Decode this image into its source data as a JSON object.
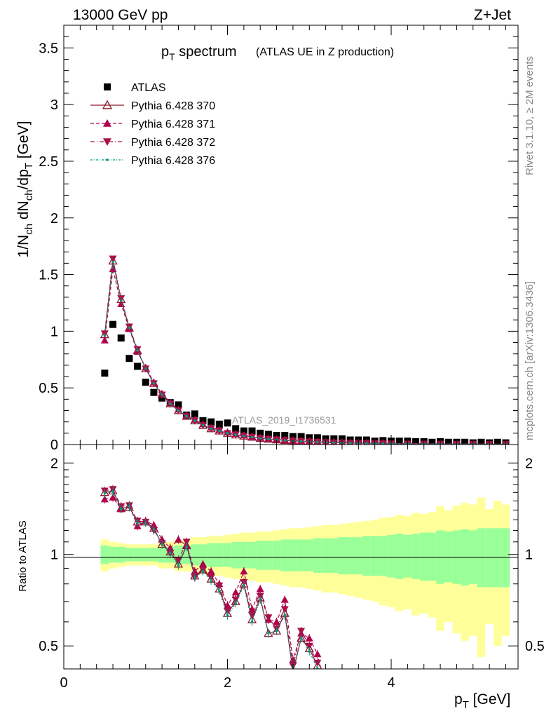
{
  "header": {
    "left": "13000 GeV pp",
    "right": "Z+Jet"
  },
  "side_labels": {
    "top": "Rivet 3.1.10, ≥ 2M events",
    "bottom": "mcplots.cern.ch [arXiv:1306.3436]"
  },
  "title": {
    "main": "p",
    "main_sub": "T",
    "main_rest": " spectrum",
    "suffix": "(ATLAS UE in Z production)"
  },
  "watermark": "ATLAS_2019_I1736531",
  "ylabel_main": "1/N_ch dN_ch/dp_T [GeV]",
  "ylabel_ratio": "Ratio to ATLAS",
  "xlabel": "p_T [GeV]",
  "main_yticks": [
    "0",
    "0.5",
    "1",
    "1.5",
    "2",
    "2.5",
    "3",
    "3.5"
  ],
  "ratio_yticks": [
    "0.5",
    "1",
    "2"
  ],
  "xticks": [
    "0",
    "2",
    "4"
  ],
  "colors": {
    "data": "#000000",
    "p370": "#8b1a2a",
    "p371": "#b0004c",
    "p372": "#a81048",
    "p376": "#009980",
    "band_inner": "#99ff99",
    "band_outer": "#ffff99"
  },
  "chart_data": {
    "type": "scatter",
    "xlim": [
      0,
      5.55
    ],
    "ylim": [
      0,
      3.7
    ],
    "ratio_ylim": [
      0.42,
      2.3
    ],
    "legend_position": "top-left",
    "series": [
      {
        "name": "ATLAS",
        "key": "data",
        "marker": "square",
        "x": [
          0.5,
          0.6,
          0.7,
          0.8,
          0.9,
          1.0,
          1.1,
          1.2,
          1.3,
          1.4,
          1.5,
          1.6,
          1.7,
          1.8,
          1.9,
          2.0,
          2.1,
          2.2,
          2.3,
          2.4,
          2.5,
          2.6,
          2.7,
          2.8,
          2.9,
          3.0,
          3.1,
          3.2,
          3.3,
          3.4,
          3.5,
          3.6,
          3.7,
          3.8,
          3.9,
          4.0,
          4.1,
          4.2,
          4.3,
          4.4,
          4.5,
          4.6,
          4.7,
          4.8,
          4.9,
          5.0,
          5.1,
          5.2,
          5.3,
          5.4
        ],
        "y": [
          0.63,
          1.06,
          0.94,
          0.76,
          0.69,
          0.55,
          0.46,
          0.41,
          0.37,
          0.35,
          0.26,
          0.27,
          0.21,
          0.2,
          0.18,
          0.19,
          0.14,
          0.12,
          0.12,
          0.1,
          0.09,
          0.08,
          0.08,
          0.07,
          0.07,
          0.06,
          0.06,
          0.05,
          0.05,
          0.05,
          0.04,
          0.04,
          0.04,
          0.03,
          0.035,
          0.03,
          0.03,
          0.03,
          0.025,
          0.025,
          0.02,
          0.025,
          0.02,
          0.02,
          0.02,
          0.015,
          0.02,
          0.015,
          0.02,
          0.015
        ]
      },
      {
        "name": "Pythia 6.428 370",
        "key": "p370",
        "marker": "open-triangle-up",
        "line": "solid",
        "x": [
          0.5,
          0.6,
          0.7,
          0.8,
          0.9,
          1.0,
          1.1,
          1.2,
          1.3,
          1.4,
          1.5,
          1.6,
          1.7,
          1.8,
          1.9,
          2.0,
          2.1,
          2.2,
          2.3,
          2.4,
          2.5,
          2.6,
          2.7,
          2.8,
          2.9,
          3.0,
          3.1,
          3.2,
          3.3,
          3.4,
          3.5,
          3.6,
          3.7,
          3.8,
          3.9,
          4.0,
          4.2,
          4.4,
          4.6,
          4.8,
          5.0,
          5.2,
          5.4
        ],
        "y": [
          0.97,
          1.62,
          1.28,
          1.03,
          0.83,
          0.67,
          0.54,
          0.44,
          0.36,
          0.3,
          0.25,
          0.21,
          0.17,
          0.14,
          0.12,
          0.1,
          0.085,
          0.075,
          0.065,
          0.055,
          0.048,
          0.042,
          0.037,
          0.032,
          0.028,
          0.025,
          0.022,
          0.019,
          0.017,
          0.015,
          0.013,
          0.012,
          0.011,
          0.01,
          0.009,
          0.008,
          0.007,
          0.006,
          0.005,
          0.004,
          0.004,
          0.003,
          0.003
        ],
        "ratio": [
          1.6,
          1.62,
          1.42,
          1.43,
          1.28,
          1.28,
          1.22,
          1.08,
          1.02,
          0.93,
          1.07,
          0.85,
          0.89,
          0.83,
          0.77,
          0.64,
          0.7,
          0.8,
          0.61,
          0.72,
          0.55,
          0.56,
          0.64,
          0.41,
          0.53,
          0.49,
          0.43
        ]
      },
      {
        "name": "Pythia 6.428 371",
        "key": "p371",
        "marker": "triangle-up",
        "line": "dashed",
        "x": [
          0.5,
          0.6,
          0.7,
          0.8,
          0.9,
          1.0,
          1.1,
          1.2,
          1.3,
          1.4,
          1.5,
          1.6,
          1.7,
          1.8,
          1.9,
          2.0,
          2.1,
          2.2,
          2.3,
          2.4,
          2.5,
          2.6,
          2.7,
          2.8,
          2.9,
          3.0,
          3.1,
          3.2,
          3.3,
          3.4,
          3.5,
          3.6,
          3.7,
          3.8,
          3.9,
          4.0,
          4.2,
          4.4,
          4.6,
          4.8,
          5.0,
          5.2,
          5.4
        ],
        "y": [
          0.92,
          1.55,
          1.24,
          1.02,
          0.82,
          0.68,
          0.55,
          0.45,
          0.37,
          0.31,
          0.26,
          0.22,
          0.18,
          0.15,
          0.13,
          0.11,
          0.095,
          0.082,
          0.07,
          0.06,
          0.052,
          0.046,
          0.04,
          0.035,
          0.031,
          0.027,
          0.024,
          0.021,
          0.019,
          0.017,
          0.015,
          0.013,
          0.012,
          0.011,
          0.01,
          0.009,
          0.008,
          0.007,
          0.006,
          0.005,
          0.004,
          0.004,
          0.003
        ],
        "ratio": [
          1.52,
          1.54,
          1.41,
          1.45,
          1.24,
          1.29,
          1.25,
          1.12,
          1.05,
          1.12,
          1.07,
          0.88,
          0.93,
          0.88,
          0.8,
          0.68,
          0.75,
          0.88,
          0.66,
          0.77,
          0.61,
          0.6,
          0.71,
          0.45,
          0.55,
          0.53,
          0.47,
          0.36,
          0.38,
          0.37,
          0.35,
          0.36,
          0.35,
          0.38
        ]
      },
      {
        "name": "Pythia 6.428 372",
        "key": "p372",
        "marker": "triangle-down",
        "line": "dashdot",
        "x": [
          0.5,
          0.6,
          0.7,
          0.8,
          0.9,
          1.0,
          1.1,
          1.2,
          1.3,
          1.4,
          1.5,
          1.6,
          1.7,
          1.8,
          1.9,
          2.0,
          2.1,
          2.2,
          2.3,
          2.4,
          2.5,
          2.6,
          2.7,
          2.8,
          2.9,
          3.0,
          3.1,
          3.2,
          3.3,
          3.4,
          3.5,
          3.6,
          3.7,
          3.8,
          3.9,
          4.0,
          4.2,
          4.4,
          4.6,
          4.8,
          5.0,
          5.2,
          5.4
        ],
        "y": [
          0.98,
          1.64,
          1.29,
          1.04,
          0.84,
          0.67,
          0.54,
          0.44,
          0.36,
          0.3,
          0.25,
          0.21,
          0.17,
          0.14,
          0.12,
          0.1,
          0.088,
          0.077,
          0.066,
          0.056,
          0.049,
          0.043,
          0.038,
          0.033,
          0.029,
          0.025,
          0.022,
          0.019,
          0.017,
          0.015,
          0.013,
          0.012,
          0.011,
          0.01,
          0.009,
          0.008,
          0.007,
          0.006,
          0.005,
          0.004,
          0.004,
          0.003,
          0.003
        ],
        "ratio": [
          1.62,
          1.64,
          1.44,
          1.45,
          1.29,
          1.28,
          1.2,
          1.09,
          1.01,
          0.96,
          1.1,
          0.84,
          0.89,
          0.84,
          0.79,
          0.65,
          0.71,
          0.81,
          0.63,
          0.73,
          0.62,
          0.57,
          0.66,
          0.43,
          0.56,
          0.5,
          0.44
        ]
      },
      {
        "name": "Pythia 6.428 376",
        "key": "p376",
        "marker": "dot",
        "line": "dashdot-dense",
        "x": [
          0.5,
          0.6,
          0.7,
          0.8,
          0.9,
          1.0,
          1.1,
          1.2,
          1.3,
          1.4,
          1.5,
          1.6,
          1.7,
          1.8,
          1.9,
          2.0,
          2.1,
          2.2,
          2.3,
          2.4,
          2.5,
          2.6,
          2.7,
          2.8,
          2.9,
          3.0,
          3.1,
          3.2,
          3.3,
          3.4,
          3.5,
          3.6,
          3.7,
          3.8,
          3.9,
          4.0,
          4.2,
          4.4,
          4.6,
          4.8,
          5.0,
          5.2,
          5.4
        ],
        "y": [
          0.96,
          1.61,
          1.27,
          1.03,
          0.83,
          0.67,
          0.54,
          0.44,
          0.36,
          0.3,
          0.25,
          0.21,
          0.17,
          0.14,
          0.12,
          0.1,
          0.086,
          0.075,
          0.065,
          0.055,
          0.048,
          0.042,
          0.037,
          0.032,
          0.028,
          0.025,
          0.022,
          0.019,
          0.017,
          0.015,
          0.013,
          0.012,
          0.011,
          0.01,
          0.009,
          0.008,
          0.007,
          0.006,
          0.005,
          0.004,
          0.004,
          0.003,
          0.003
        ],
        "ratio": [
          1.59,
          1.61,
          1.41,
          1.44,
          1.27,
          1.27,
          1.21,
          1.08,
          1.01,
          0.92,
          1.06,
          0.84,
          0.88,
          0.82,
          0.76,
          0.63,
          0.69,
          0.79,
          0.6,
          0.71,
          0.55,
          0.56,
          0.63,
          0.42,
          0.53,
          0.48,
          0.42
        ]
      }
    ],
    "ratio_band": {
      "x": [
        0.5,
        0.6,
        0.7,
        0.8,
        0.9,
        1.0,
        1.1,
        1.2,
        1.3,
        1.4,
        1.5,
        1.6,
        1.7,
        1.8,
        1.9,
        2.0,
        2.1,
        2.2,
        2.3,
        2.4,
        2.5,
        2.6,
        2.7,
        2.8,
        2.9,
        3.0,
        3.1,
        3.2,
        3.3,
        3.4,
        3.5,
        3.6,
        3.7,
        3.8,
        3.9,
        4.0,
        4.1,
        4.2,
        4.3,
        4.4,
        4.5,
        4.6,
        4.7,
        4.8,
        4.9,
        5.0,
        5.1,
        5.2,
        5.3,
        5.4
      ],
      "inner": [
        0.07,
        0.06,
        0.06,
        0.05,
        0.05,
        0.05,
        0.05,
        0.06,
        0.06,
        0.07,
        0.07,
        0.08,
        0.08,
        0.09,
        0.09,
        0.09,
        0.1,
        0.1,
        0.1,
        0.11,
        0.11,
        0.11,
        0.12,
        0.12,
        0.12,
        0.12,
        0.13,
        0.13,
        0.13,
        0.14,
        0.14,
        0.14,
        0.15,
        0.15,
        0.15,
        0.16,
        0.17,
        0.16,
        0.17,
        0.18,
        0.18,
        0.2,
        0.19,
        0.2,
        0.21,
        0.2,
        0.22,
        0.22,
        0.22,
        0.22
      ],
      "outer": [
        0.12,
        0.1,
        0.09,
        0.08,
        0.08,
        0.08,
        0.08,
        0.1,
        0.1,
        0.12,
        0.12,
        0.14,
        0.14,
        0.15,
        0.15,
        0.16,
        0.17,
        0.18,
        0.18,
        0.19,
        0.19,
        0.2,
        0.21,
        0.22,
        0.22,
        0.23,
        0.24,
        0.25,
        0.25,
        0.26,
        0.27,
        0.28,
        0.29,
        0.3,
        0.32,
        0.33,
        0.35,
        0.34,
        0.37,
        0.36,
        0.38,
        0.44,
        0.4,
        0.45,
        0.48,
        0.46,
        0.54,
        0.41,
        0.5,
        0.46
      ]
    }
  }
}
